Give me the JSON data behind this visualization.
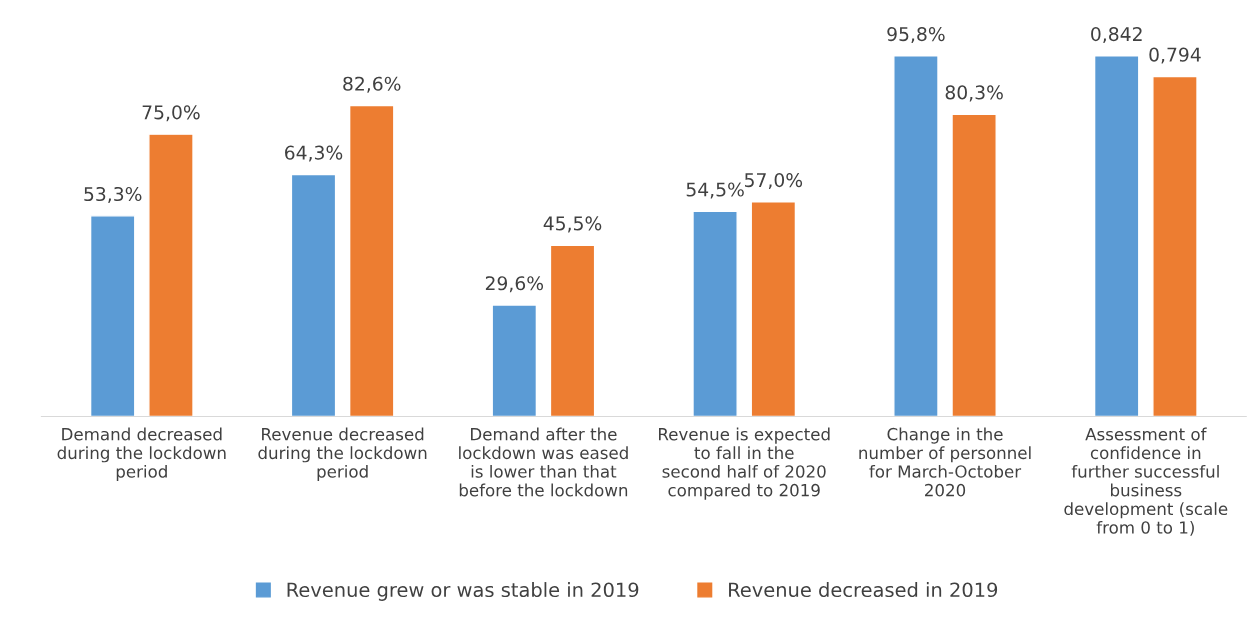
{
  "chart_data": [
    {
      "type": "bar",
      "categories": [
        "Demand decreased during the lockdown period",
        "Revenue decreased during the lockdown period",
        "Demand after the lockdown was eased is lower than that before the lockdown",
        "Revenue is expected to fall in the second half of 2020 compared to 2019",
        "Change in the number of personnel for March-October 2020"
      ],
      "series": [
        {
          "name": "Revenue grew or was stable in 2019",
          "color": "#5b9bd5",
          "values": [
            53.3,
            64.3,
            29.6,
            54.5,
            95.8
          ],
          "value_labels": [
            "53,3%",
            "64,3%",
            "29,6%",
            "54,5%",
            "95,8%"
          ]
        },
        {
          "name": "Revenue decreased in 2019",
          "color": "#ed7d31",
          "values": [
            75.0,
            82.6,
            45.5,
            57.0,
            80.3
          ],
          "value_labels": [
            "75,0%",
            "82,6%",
            "45,5%",
            "57,0%",
            "80,3%"
          ]
        }
      ],
      "legend": "bottom"
    },
    {
      "type": "bar",
      "categories": [
        "Assessment of confidence in further successful business development (scale from 0 to 1)"
      ],
      "series": [
        {
          "color": "#5b9bd5",
          "values": [
            0.842
          ],
          "value_labels": [
            "0,842"
          ]
        },
        {
          "color": "#ed7d31",
          "values": [
            0.794
          ],
          "value_labels": [
            "0,794"
          ]
        }
      ]
    }
  ]
}
